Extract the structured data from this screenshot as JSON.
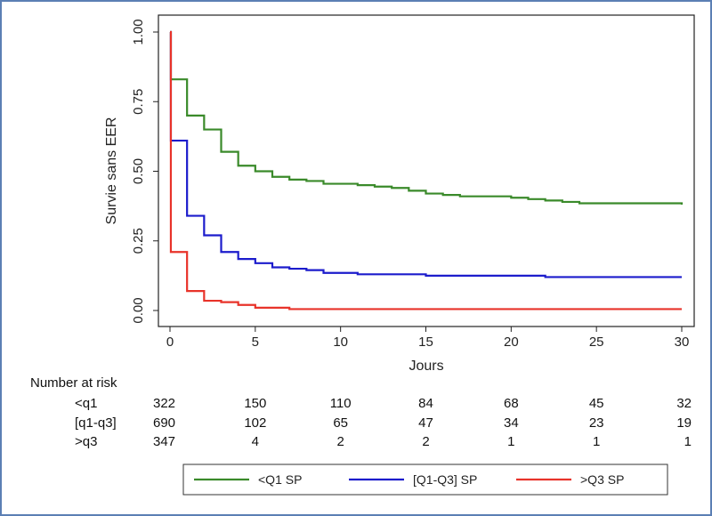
{
  "colors": {
    "green": "#3a8a2a",
    "blue": "#1c1ccc",
    "red": "#e8332a",
    "frame": "#5b7fb4"
  },
  "chart_data": {
    "type": "line",
    "subtype": "kaplan-meier step",
    "xlabel": "Jours",
    "ylabel": "Survie sans EER",
    "xlim": [
      0,
      30
    ],
    "ylim": [
      0,
      1
    ],
    "xticks": [
      0,
      5,
      10,
      15,
      20,
      25,
      30
    ],
    "yticks": [
      "0.00",
      "0.25",
      "0.50",
      "0.75",
      "1.00"
    ],
    "grid": false,
    "legend_position": "bottom",
    "series": [
      {
        "name": "<Q1 SP",
        "color": "#3a8a2a",
        "x": [
          0,
          0.05,
          1,
          2,
          3,
          4,
          5,
          6,
          7,
          8,
          9,
          10,
          11,
          12,
          13,
          14,
          15,
          16,
          17,
          18,
          19,
          20,
          21,
          22,
          23,
          24,
          25,
          30
        ],
        "y": [
          1.0,
          0.83,
          0.7,
          0.65,
          0.57,
          0.52,
          0.5,
          0.48,
          0.47,
          0.465,
          0.455,
          0.455,
          0.45,
          0.445,
          0.44,
          0.43,
          0.42,
          0.415,
          0.41,
          0.41,
          0.41,
          0.405,
          0.4,
          0.395,
          0.39,
          0.385,
          0.385,
          0.38
        ]
      },
      {
        "name": "[Q1-Q3] SP",
        "color": "#1c1ccc",
        "x": [
          0,
          0.05,
          1,
          2,
          3,
          4,
          5,
          6,
          7,
          8,
          9,
          11,
          15,
          22,
          30
        ],
        "y": [
          1.0,
          0.61,
          0.34,
          0.27,
          0.21,
          0.185,
          0.17,
          0.155,
          0.15,
          0.145,
          0.135,
          0.13,
          0.125,
          0.12,
          0.12
        ]
      },
      {
        "name": ">Q3 SP",
        "color": "#e8332a",
        "x": [
          0,
          0.05,
          1,
          2,
          3,
          4,
          5,
          7,
          30
        ],
        "y": [
          1.0,
          0.21,
          0.07,
          0.035,
          0.03,
          0.02,
          0.01,
          0.005,
          0.005
        ]
      }
    ]
  },
  "risk_table": {
    "title": "Number at risk",
    "times": [
      0,
      5,
      10,
      15,
      20,
      25,
      30
    ],
    "rows": [
      {
        "label": "<q1",
        "counts": [
          "322",
          "150",
          "110",
          "84",
          "68",
          "45",
          "32"
        ]
      },
      {
        "label": "[q1-q3]",
        "counts": [
          "690",
          "102",
          "65",
          "47",
          "34",
          "23",
          "19"
        ]
      },
      {
        "label": ">q3",
        "counts": [
          "347",
          "4",
          "2",
          "2",
          "1",
          "1",
          "1"
        ]
      }
    ]
  }
}
